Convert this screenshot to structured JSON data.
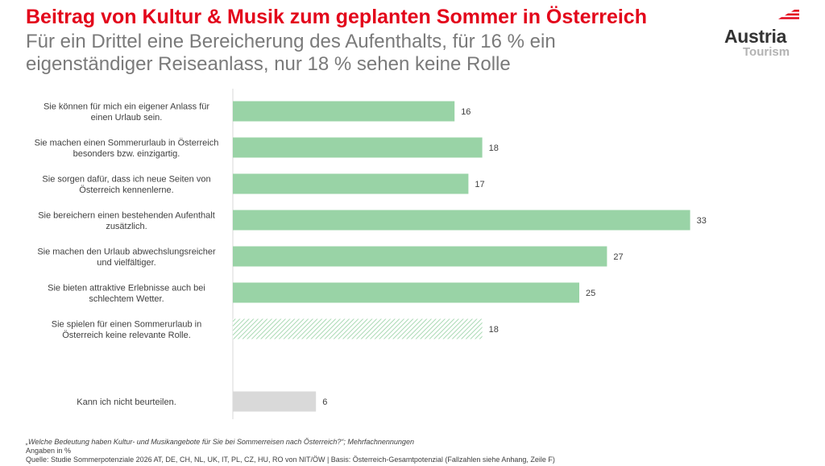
{
  "header": {
    "title": "Beitrag von Kultur & Musik zum geplanten Sommer in Österreich",
    "subtitle": "Für ein Drittel eine Bereicherung des Aufenthalts, für 16 % ein eigenständiger Reiseanlass, nur 18 % sehen keine Rolle"
  },
  "logo": {
    "word1": "Austria",
    "word2": "Tourism",
    "accent_color": "#e3061b"
  },
  "chart_data": {
    "type": "bar",
    "orientation": "horizontal",
    "categories": [
      [
        "Sie können für mich ein eigener Anlass für",
        "einen Urlaub sein."
      ],
      [
        "Sie machen einen Sommerurlaub in Österreich",
        "besonders bzw. einzigartig."
      ],
      [
        "Sie sorgen dafür, dass ich neue Seiten von",
        "Österreich kennenlerne."
      ],
      [
        "Sie bereichern einen bestehenden Aufenthalt",
        "zusätzlich."
      ],
      [
        "Sie machen den Urlaub abwechslungsreicher",
        "und vielfältiger."
      ],
      [
        "Sie bieten attraktive Erlebnisse auch bei",
        "schlechtem Wetter."
      ],
      [
        "Sie spielen für einen Sommerurlaub in",
        "Österreich keine relevante Rolle."
      ],
      [
        "Kann ich nicht beurteilen."
      ]
    ],
    "values": [
      16,
      18,
      17,
      33,
      27,
      25,
      18,
      6
    ],
    "styles": [
      "solid",
      "solid",
      "solid",
      "solid",
      "solid",
      "solid",
      "hatched",
      "gray"
    ],
    "colors": {
      "solid": "#99d3a6",
      "hatched": "#a9d9b3",
      "gray": "#d9d9d9"
    },
    "xlim": [
      0,
      35
    ],
    "data_labels": true,
    "grid": false,
    "legend": "none"
  },
  "footer": {
    "question": "„Welche Bedeutung haben Kultur- und Musikangebote für Sie bei Sommerreisen nach Österreich?“; Mehrfachnennungen",
    "units": "Angaben in %",
    "source": "Quelle: Studie Sommerpotenziale 2026 AT, DE, CH, NL, UK, IT, PL, CZ, HU, RO von NIT/ÖW | Basis: Österreich-Gesamtpotenzial (Fallzahlen siehe Anhang, Zeile F)"
  }
}
